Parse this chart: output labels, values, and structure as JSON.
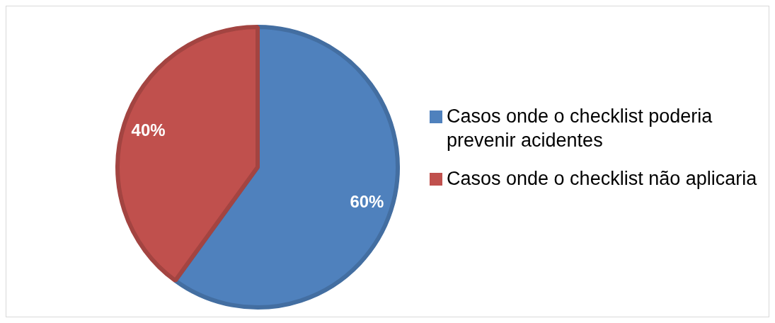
{
  "chart_data": {
    "type": "pie",
    "categories": [
      "Casos onde o checklist poderia prevenir acidentes",
      "Casos onde o checklist não aplicaria"
    ],
    "values": [
      60,
      40
    ],
    "colors": [
      "#4f81bd",
      "#c0504d"
    ],
    "value_labels": [
      "60%",
      "40%"
    ],
    "legend": "right"
  }
}
